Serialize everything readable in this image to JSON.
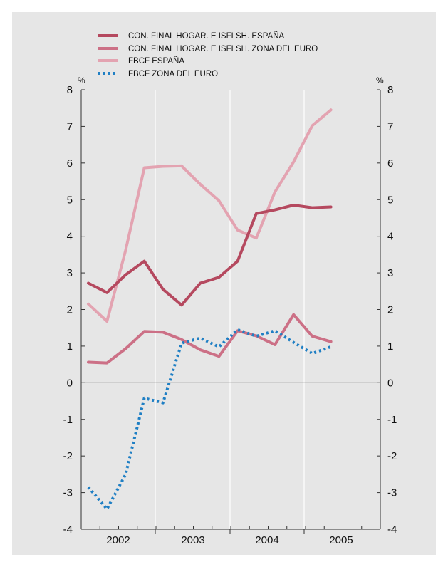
{
  "chart_data": {
    "type": "line",
    "y_unit_label": "%",
    "ylim": [
      -4,
      8
    ],
    "y_ticks": [
      "-4",
      "-3",
      "-2",
      "-1",
      "0",
      "1",
      "2",
      "3",
      "4",
      "5",
      "6",
      "7",
      "8"
    ],
    "x_year_labels": [
      "2002",
      "2003",
      "2004",
      "2005"
    ],
    "quarters": [
      "2001 Q4",
      "2002 Q1",
      "2002 Q2",
      "2002 Q3",
      "2002 Q4",
      "2003 Q1",
      "2003 Q2",
      "2003 Q3",
      "2003 Q4",
      "2004 Q1",
      "2004 Q2",
      "2004 Q3",
      "2004 Q4",
      "2005 Q1"
    ],
    "grid": "vertical lines at year boundaries",
    "legend_position": "top",
    "series": [
      {
        "name": "CON. FINAL HOGAR. E ISFLSH. ESPAÑA",
        "color": "#b5495f",
        "style": "solid",
        "values": [
          2.72,
          2.46,
          2.95,
          3.32,
          2.55,
          2.12,
          2.72,
          2.88,
          3.32,
          4.62,
          4.72,
          4.85,
          4.78,
          4.8
        ]
      },
      {
        "name": "CON. FINAL HOGAR. E ISFLSH. ZONA DEL EURO",
        "color": "#cc7086",
        "style": "solid",
        "values": [
          0.56,
          0.54,
          0.93,
          1.4,
          1.38,
          1.18,
          0.9,
          0.72,
          1.42,
          1.28,
          1.04,
          1.86,
          1.27,
          1.12
        ]
      },
      {
        "name": "FBCF ESPAÑA",
        "color": "#e3a3b1",
        "style": "solid",
        "values": [
          2.15,
          1.68,
          3.62,
          5.87,
          5.91,
          5.92,
          5.42,
          4.97,
          4.17,
          3.95,
          5.21,
          6.03,
          7.02,
          7.45
        ]
      },
      {
        "name": "FBCF ZONA DEL EURO",
        "color": "#1f7fc4",
        "style": "dotted",
        "values": [
          -2.85,
          -3.45,
          -2.5,
          -0.42,
          -0.55,
          1.08,
          1.22,
          0.98,
          1.45,
          1.27,
          1.42,
          1.1,
          0.8,
          0.98
        ]
      }
    ]
  }
}
